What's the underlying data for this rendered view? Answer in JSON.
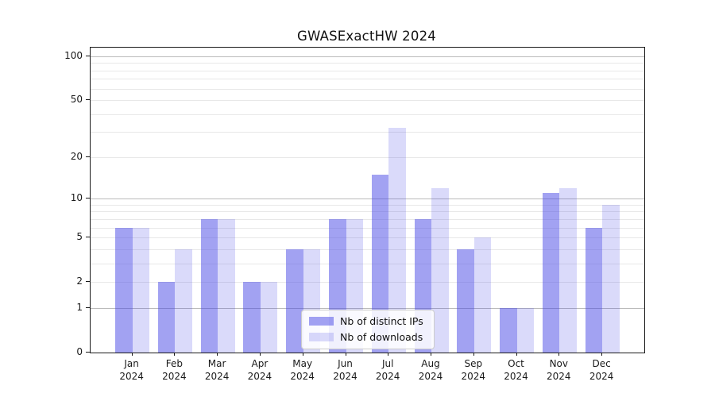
{
  "figure": {
    "title": "GWASExactHW 2024"
  },
  "chart_data": {
    "type": "bar",
    "title": "GWASExactHW 2024",
    "categories": [
      "Jan 2024",
      "Feb 2024",
      "Mar 2024",
      "Apr 2024",
      "May 2024",
      "Jun 2024",
      "Jul 2024",
      "Aug 2024",
      "Sep 2024",
      "Oct 2024",
      "Nov 2024",
      "Dec 2024"
    ],
    "series": [
      {
        "name": "Nb of distinct IPs",
        "values": [
          6,
          2,
          7,
          2,
          4,
          7,
          15,
          7,
          4,
          1,
          11,
          6
        ],
        "color": "rgba(70,70,230,0.5)"
      },
      {
        "name": "Nb of downloads",
        "values": [
          6,
          4,
          7,
          2,
          4,
          7,
          32,
          12,
          5,
          1,
          12,
          9
        ],
        "color": "rgba(70,70,230,0.2)"
      }
    ],
    "yscale": "log1p",
    "xlabel": "",
    "ylabel": "",
    "y_axis": {
      "tick_values": [
        0,
        1,
        2,
        5,
        10,
        20,
        50,
        100
      ],
      "major_grid_values": [
        1,
        10,
        100
      ],
      "minor_grid_values": [
        2,
        3,
        4,
        5,
        6,
        7,
        8,
        9,
        20,
        30,
        40,
        50,
        60,
        70,
        80,
        90
      ],
      "top_value_log1p": 2.063
    },
    "grid": true,
    "legend_position": "lower-center"
  },
  "legend": {
    "items": [
      {
        "label": "Nb of distinct IPs"
      },
      {
        "label": "Nb of downloads"
      }
    ]
  },
  "colors": {
    "bar_distinct_ips": "#a6a6f0",
    "bar_downloads": "#dadaf8",
    "grid_major": "#bbbbbb",
    "grid_minor": "#e8e8e8",
    "axis": "#1a1a1a",
    "legend_border": "#cccccc"
  }
}
